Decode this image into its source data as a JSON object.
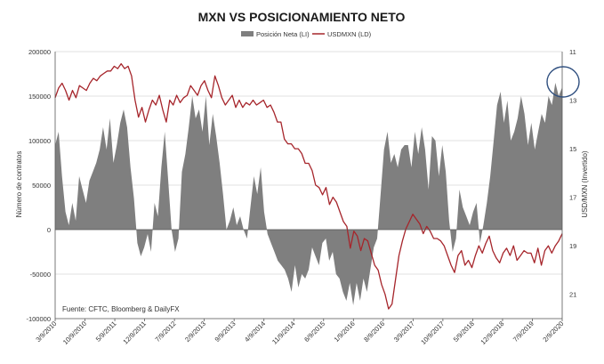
{
  "chart_data": {
    "type": "area",
    "title": "MXN VS POSICIONAMIENTO NETO",
    "note": "Fuente: CFTC, Bloomberg & DailyFX",
    "y_left": {
      "label": "Número de contratos",
      "range": [
        -100000,
        200000
      ],
      "ticks": [
        200000,
        150000,
        100000,
        50000,
        0,
        -50000,
        -100000
      ],
      "tick_labels": [
        "200000",
        "150000",
        "100000",
        "50000",
        "0",
        "-50000",
        "-100000"
      ]
    },
    "y_right": {
      "label": "USD/MXN (Invertido)",
      "range": [
        11,
        22
      ],
      "inverted": true,
      "ticks": [
        11,
        13,
        15,
        17,
        19,
        21
      ],
      "tick_labels": [
        "11",
        "13",
        "15",
        "17",
        "19",
        "21"
      ]
    },
    "x_labels": [
      "3/9/2010",
      "10/9/2010",
      "5/9/2011",
      "12/9/2011",
      "7/9/2012",
      "2/9/2013",
      "9/9/2013",
      "4/9/2014",
      "11/9/2014",
      "6/9/2015",
      "1/9/2016",
      "8/9/2016",
      "3/9/2017",
      "10/9/2017",
      "5/9/2018",
      "12/9/2018",
      "7/9/2019",
      "2/9/2020"
    ],
    "grid": true,
    "legend_position": "top-right",
    "series": [
      {
        "name": "Posición Neta (LI)",
        "type": "area",
        "axis": "left",
        "color": "#7f7f7f",
        "values": [
          95000,
          110000,
          60000,
          20000,
          5000,
          30000,
          10000,
          60000,
          45000,
          30000,
          55000,
          65000,
          75000,
          90000,
          115000,
          90000,
          125000,
          75000,
          95000,
          120000,
          135000,
          115000,
          70000,
          35000,
          -15000,
          -30000,
          -20000,
          -5000,
          -25000,
          30000,
          15000,
          70000,
          110000,
          55000,
          0,
          -25000,
          -10000,
          65000,
          85000,
          115000,
          150000,
          125000,
          135000,
          110000,
          150000,
          95000,
          130000,
          105000,
          75000,
          40000,
          0,
          10000,
          25000,
          5000,
          15000,
          0,
          -10000,
          25000,
          60000,
          40000,
          70000,
          20000,
          -5000,
          -15000,
          -25000,
          -35000,
          -40000,
          -45000,
          -55000,
          -70000,
          -40000,
          -65000,
          -50000,
          -55000,
          -45000,
          -20000,
          -30000,
          -40000,
          -15000,
          -10000,
          -35000,
          -25000,
          -50000,
          -55000,
          -70000,
          -80000,
          -60000,
          -85000,
          -60000,
          -80000,
          -55000,
          -70000,
          -45000,
          -20000,
          -10000,
          40000,
          90000,
          110000,
          75000,
          85000,
          70000,
          90000,
          95000,
          95000,
          70000,
          110000,
          85000,
          115000,
          90000,
          45000,
          105000,
          100000,
          60000,
          95000,
          65000,
          10000,
          -25000,
          -10000,
          45000,
          25000,
          15000,
          5000,
          20000,
          30000,
          -15000,
          5000,
          30000,
          60000,
          100000,
          140000,
          155000,
          120000,
          145000,
          100000,
          110000,
          125000,
          150000,
          130000,
          95000,
          120000,
          90000,
          110000,
          130000,
          120000,
          150000,
          140000,
          165000,
          150000,
          160000
        ]
      },
      {
        "name": "USDMXN (LD)",
        "type": "line",
        "axis": "right",
        "color": "#a6252b",
        "values": [
          12.9,
          12.5,
          12.3,
          12.6,
          13.0,
          12.6,
          12.9,
          12.4,
          12.5,
          12.6,
          12.3,
          12.1,
          12.2,
          12.0,
          11.9,
          11.8,
          11.8,
          11.6,
          11.7,
          11.5,
          11.7,
          11.6,
          12.0,
          13.0,
          13.7,
          13.3,
          13.9,
          13.4,
          13.0,
          13.2,
          12.8,
          13.4,
          13.9,
          13.0,
          13.2,
          12.8,
          13.1,
          12.9,
          12.8,
          12.4,
          12.6,
          12.8,
          12.4,
          12.2,
          12.6,
          12.9,
          12.0,
          12.4,
          12.9,
          13.2,
          13.0,
          12.8,
          13.3,
          13.0,
          13.3,
          13.1,
          13.2,
          13.0,
          13.2,
          13.1,
          13.0,
          13.3,
          13.2,
          13.5,
          13.9,
          13.9,
          14.6,
          14.8,
          14.8,
          15.0,
          15.0,
          15.2,
          15.6,
          15.6,
          15.9,
          16.5,
          16.6,
          16.9,
          16.6,
          17.3,
          17.0,
          17.2,
          17.6,
          18.0,
          18.2,
          19.1,
          18.4,
          18.6,
          19.2,
          18.7,
          18.8,
          19.3,
          19.8,
          20.0,
          20.6,
          21.0,
          21.6,
          21.4,
          20.4,
          19.4,
          18.8,
          18.3,
          18.0,
          17.7,
          17.9,
          18.1,
          18.5,
          18.2,
          18.4,
          18.7,
          18.7,
          18.8,
          19.0,
          19.4,
          19.8,
          20.1,
          19.4,
          19.2,
          19.8,
          19.6,
          19.9,
          19.4,
          19.0,
          19.3,
          18.9,
          18.6,
          19.2,
          19.5,
          19.7,
          19.3,
          19.1,
          19.4,
          19.0,
          19.6,
          19.4,
          19.2,
          19.3,
          19.3,
          19.7,
          19.1,
          19.8,
          19.2,
          19.0,
          19.3,
          19.0,
          18.8,
          18.5
        ]
      }
    ]
  }
}
